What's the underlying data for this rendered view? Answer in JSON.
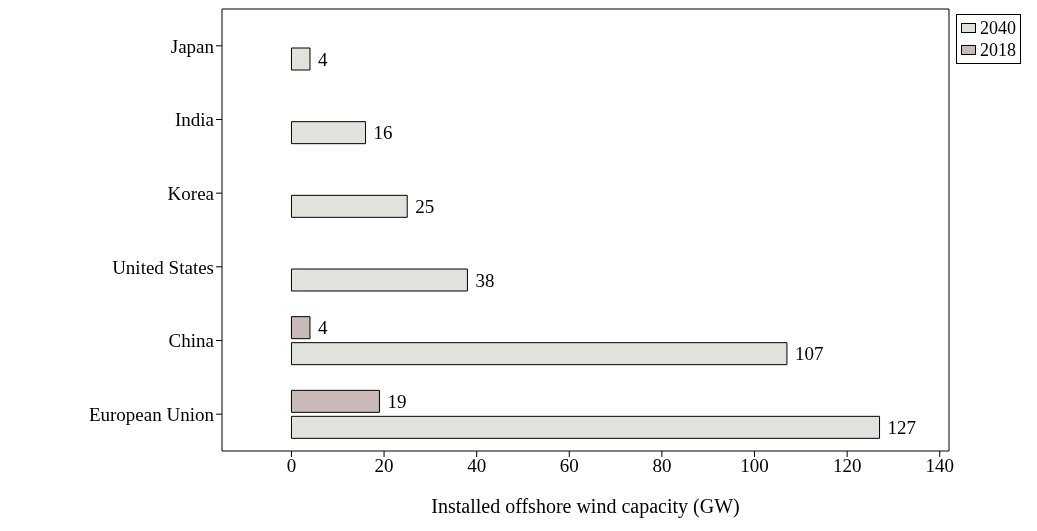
{
  "chart_data": {
    "type": "bar",
    "orientation": "horizontal",
    "xlabel": "Installed offshore wind capacity (GW)",
    "categories": [
      "Japan",
      "India",
      "Korea",
      "United States",
      "China",
      "European Union"
    ],
    "series": [
      {
        "name": "2040",
        "color": "#dfe3dc",
        "values": [
          4,
          16,
          25,
          38,
          107,
          127
        ]
      },
      {
        "name": "2018",
        "color": "#c9b9b9",
        "values": [
          null,
          null,
          null,
          null,
          4,
          19
        ]
      }
    ],
    "xlim": [
      -15,
      142
    ],
    "xticks": [
      0,
      20,
      40,
      60,
      80,
      100,
      120,
      140
    ],
    "data_labels": true,
    "legend": "top right",
    "grid": false
  }
}
